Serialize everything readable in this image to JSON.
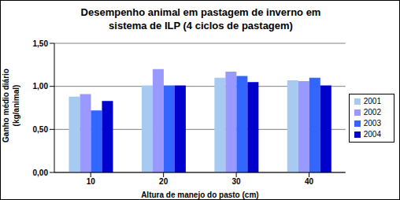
{
  "chart_data": {
    "type": "bar",
    "title": "Desempenho animal em pastagem de inverno em\nsistema de ILP (4 ciclos de pastagem)",
    "x_label": "Altura de manejo do pasto (cm)",
    "y_label": "Ganho médio diário\n(kg/animal)",
    "categories": [
      "10",
      "20",
      "30",
      "40"
    ],
    "series": [
      {
        "name": "2001",
        "color": "#a6caf0",
        "values": [
          0.88,
          1.01,
          1.1,
          1.07
        ]
      },
      {
        "name": "2002",
        "color": "#9999ff",
        "values": [
          0.91,
          1.2,
          1.17,
          1.06
        ]
      },
      {
        "name": "2003",
        "color": "#3366ff",
        "values": [
          0.72,
          1.01,
          1.12,
          1.1
        ]
      },
      {
        "name": "2004",
        "color": "#0000cc",
        "values": [
          0.83,
          1.01,
          1.05,
          1.01
        ]
      }
    ],
    "ylim": [
      0,
      1.5
    ],
    "yticks": [
      {
        "value": 0,
        "label": "0,00"
      },
      {
        "value": 0.5,
        "label": "0,50"
      },
      {
        "value": 1,
        "label": "1,00"
      },
      {
        "value": 1.5,
        "label": "1,50"
      }
    ],
    "grid": true,
    "legend": "right"
  }
}
